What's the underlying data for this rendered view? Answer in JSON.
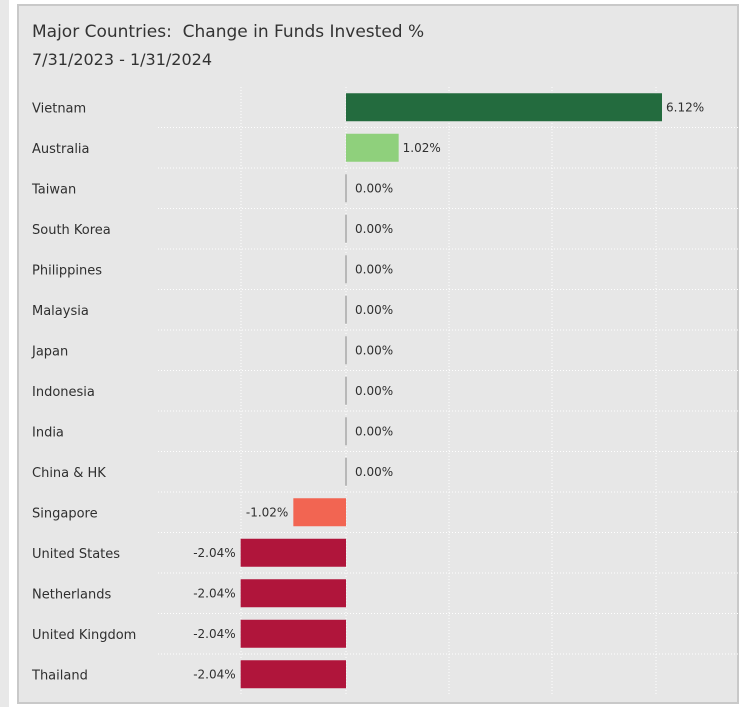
{
  "chart_data": {
    "type": "bar",
    "orientation": "horizontal",
    "title": "Major Countries:  Change in Funds Invested %",
    "subtitle": "7/31/2023 - 1/31/2024",
    "categories": [
      "Vietnam",
      "Australia",
      "Taiwan",
      "South Korea",
      "Philippines",
      "Malaysia",
      "Japan",
      "Indonesia",
      "India",
      "China & HK",
      "Singapore",
      "United States",
      "Netherlands",
      "United Kingdom",
      "Thailand"
    ],
    "values": [
      6.12,
      1.02,
      0.0,
      0.0,
      0.0,
      0.0,
      0.0,
      0.0,
      0.0,
      0.0,
      -1.02,
      -2.04,
      -2.04,
      -2.04,
      -2.04
    ],
    "value_labels": [
      "6.12%",
      "1.02%",
      "0.00%",
      "0.00%",
      "0.00%",
      "0.00%",
      "0.00%",
      "0.00%",
      "0.00%",
      "0.00%",
      "-1.02%",
      "-2.04%",
      "-2.04%",
      "-2.04%",
      "-2.04%"
    ],
    "xlim": [
      -2.04,
      7.14
    ],
    "grid": true,
    "colors": {
      "strong_positive": "#236b3e",
      "positive": "#8fd07c",
      "zero": "#b8b8b8",
      "negative": "#f26552",
      "strong_negative": "#b0153b"
    }
  }
}
